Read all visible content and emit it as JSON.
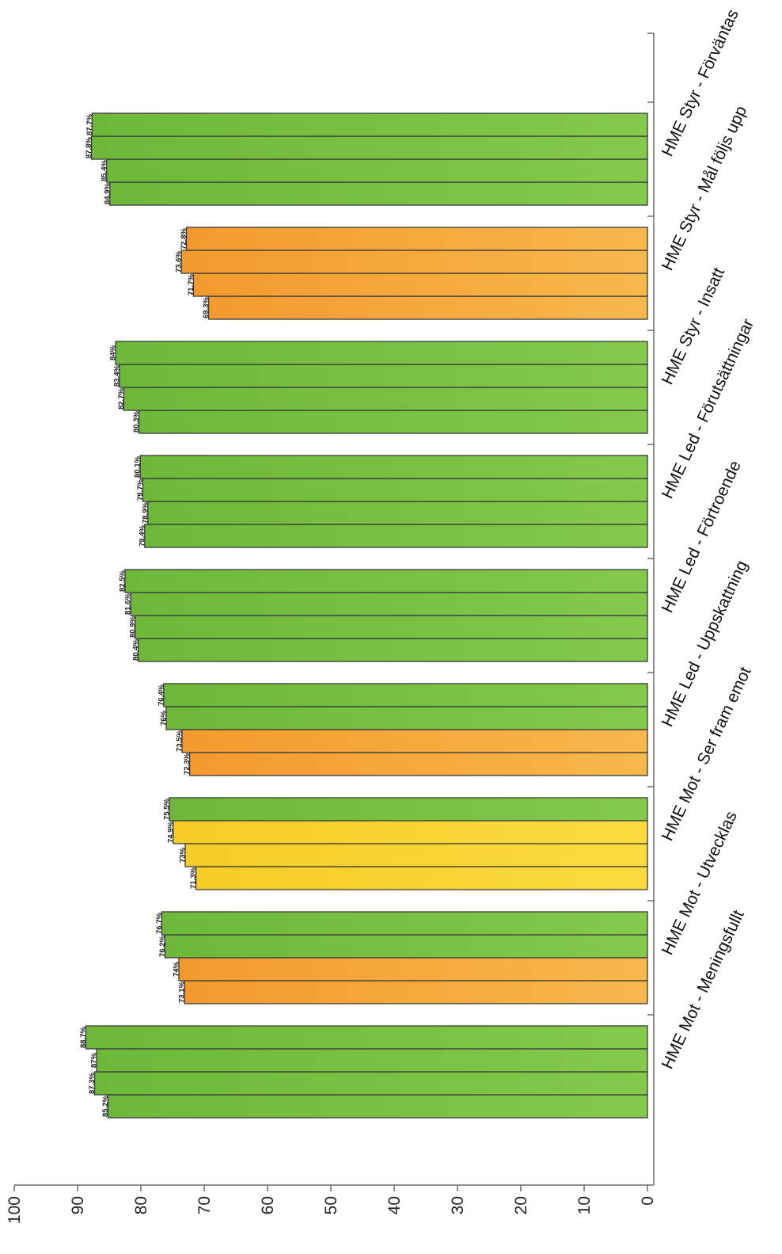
{
  "chart_data": {
    "type": "bar",
    "orientation": "horizontal-rotated",
    "title": "",
    "xlabel": "",
    "ylabel": "",
    "ylim": [
      0,
      100
    ],
    "yticks": [
      "0",
      "10",
      "20",
      "30",
      "40",
      "50",
      "60",
      "70",
      "80",
      "90",
      "100"
    ],
    "grid": false,
    "legend": "none",
    "colors": {
      "green": "#7cc242",
      "orange": "#f5a93a",
      "yellow": "#f9d531"
    },
    "categories": [
      {
        "label": "HME Mot - Meningsfullt",
        "bars": [
          {
            "value": 85.2,
            "label": "85.2%",
            "color": "green"
          },
          {
            "value": 87.3,
            "label": "87.3%",
            "color": "green"
          },
          {
            "value": 87,
            "label": "87%",
            "color": "green"
          },
          {
            "value": 88.7,
            "label": "88.7%",
            "color": "green"
          }
        ]
      },
      {
        "label": "HME Mot - Utvecklas",
        "bars": [
          {
            "value": 73.1,
            "label": "73.1%",
            "color": "orange"
          },
          {
            "value": 74,
            "label": "74%",
            "color": "orange"
          },
          {
            "value": 76.2,
            "label": "76.2%",
            "color": "green"
          },
          {
            "value": 76.7,
            "label": "76.7%",
            "color": "green"
          }
        ]
      },
      {
        "label": "HME Mot - Ser fram emot",
        "bars": [
          {
            "value": 71.3,
            "label": "71.3%",
            "color": "yellow"
          },
          {
            "value": 73,
            "label": "73%",
            "color": "yellow"
          },
          {
            "value": 74.9,
            "label": "74.9%",
            "color": "yellow"
          },
          {
            "value": 75.5,
            "label": "75.5%",
            "color": "green"
          }
        ]
      },
      {
        "label": "HME Led - Uppskattning",
        "bars": [
          {
            "value": 72.3,
            "label": "72.3%",
            "color": "orange"
          },
          {
            "value": 73.5,
            "label": "73.5%",
            "color": "orange"
          },
          {
            "value": 76,
            "label": "76%",
            "color": "green"
          },
          {
            "value": 76.4,
            "label": "76.4%",
            "color": "green"
          }
        ]
      },
      {
        "label": "HME Led - Förtroende",
        "bars": [
          {
            "value": 80.4,
            "label": "80.4%",
            "color": "green"
          },
          {
            "value": 80.9,
            "label": "80.9%",
            "color": "green"
          },
          {
            "value": 81.6,
            "label": "81.6%",
            "color": "green"
          },
          {
            "value": 82.5,
            "label": "82.5%",
            "color": "green"
          }
        ]
      },
      {
        "label": "HME Led - Förutsättningar",
        "bars": [
          {
            "value": 79.4,
            "label": "79.4%",
            "color": "green"
          },
          {
            "value": 78.9,
            "label": "78.9%",
            "color": "green"
          },
          {
            "value": 79.7,
            "label": "79.7%",
            "color": "green"
          },
          {
            "value": 80.1,
            "label": "80.1%",
            "color": "green"
          }
        ]
      },
      {
        "label": "HME Styr - Insatt",
        "bars": [
          {
            "value": 80.3,
            "label": "80.3%",
            "color": "green"
          },
          {
            "value": 82.7,
            "label": "82.7%",
            "color": "green"
          },
          {
            "value": 83.4,
            "label": "83.4%",
            "color": "green"
          },
          {
            "value": 84,
            "label": "84%",
            "color": "green"
          }
        ]
      },
      {
        "label": "HME Styr - Mål följs upp",
        "bars": [
          {
            "value": 69.3,
            "label": "69.3%",
            "color": "orange"
          },
          {
            "value": 71.7,
            "label": "71.7%",
            "color": "orange"
          },
          {
            "value": 73.6,
            "label": "73.6%",
            "color": "orange"
          },
          {
            "value": 72.8,
            "label": "72.8%",
            "color": "orange"
          }
        ]
      },
      {
        "label": "HME Styr - Förväntas",
        "bars": [
          {
            "value": 84.9,
            "label": "84.9%",
            "color": "green"
          },
          {
            "value": 85.4,
            "label": "85.4%",
            "color": "green"
          },
          {
            "value": 87.8,
            "label": "87.8%",
            "color": "green"
          },
          {
            "value": 87.7,
            "label": "87.7%",
            "color": "green"
          }
        ]
      }
    ]
  }
}
